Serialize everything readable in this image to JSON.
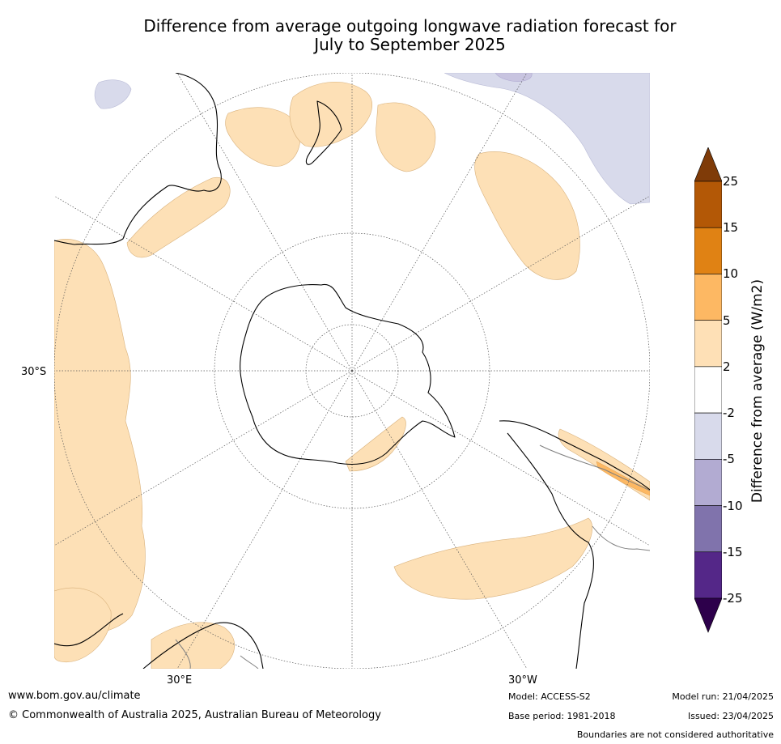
{
  "title_line1": "Difference from average outgoing longwave radiation forecast for",
  "title_line2": "July to September 2025",
  "map": {
    "projection": "polar stereographic (south pole centred)",
    "lat_labels": [
      "30°S"
    ],
    "lon_labels": [
      "30°E",
      "30°W"
    ],
    "colors": {
      "coast": "#000000",
      "border": "#808080",
      "grid": "#555555",
      "positive_small": "#fde0b6",
      "positive_medium": "#fdb863",
      "positive_large": "#e08214",
      "negative_small": "#d8daeb"
    }
  },
  "colorbar": {
    "label": "Difference from average (W/m2)",
    "ticks": [
      "25",
      "15",
      "10",
      "5",
      "2",
      "-2",
      "-5",
      "-10",
      "-15",
      "-25"
    ],
    "top_extend_color": "#7f3b08",
    "bottom_extend_color": "#2d004b",
    "segments": [
      {
        "range": "15 to 25",
        "color": "#b35806"
      },
      {
        "range": "10 to 15",
        "color": "#e08214"
      },
      {
        "range": "5 to 10",
        "color": "#fdb863"
      },
      {
        "range": "2 to 5",
        "color": "#fee0b6"
      },
      {
        "range": "-2 to 2",
        "color": "#ffffff"
      },
      {
        "range": "-5 to -2",
        "color": "#d8daeb"
      },
      {
        "range": "-10 to -5",
        "color": "#b2abd2"
      },
      {
        "range": "-15 to -10",
        "color": "#8073ac"
      },
      {
        "range": "-25 to -15",
        "color": "#542788"
      }
    ]
  },
  "footer": {
    "website": "www.bom.gov.au/climate",
    "copyright": "© Commonwealth of Australia 2025, Australian Bureau of Meteorology",
    "model": "Model: ACCESS-S2",
    "base_period": "Base period: 1981-2018",
    "model_run": "Model run: 21/04/2025",
    "issued": "Issued: 23/04/2025",
    "disclaimer": "Boundaries are not considered authoritative"
  }
}
